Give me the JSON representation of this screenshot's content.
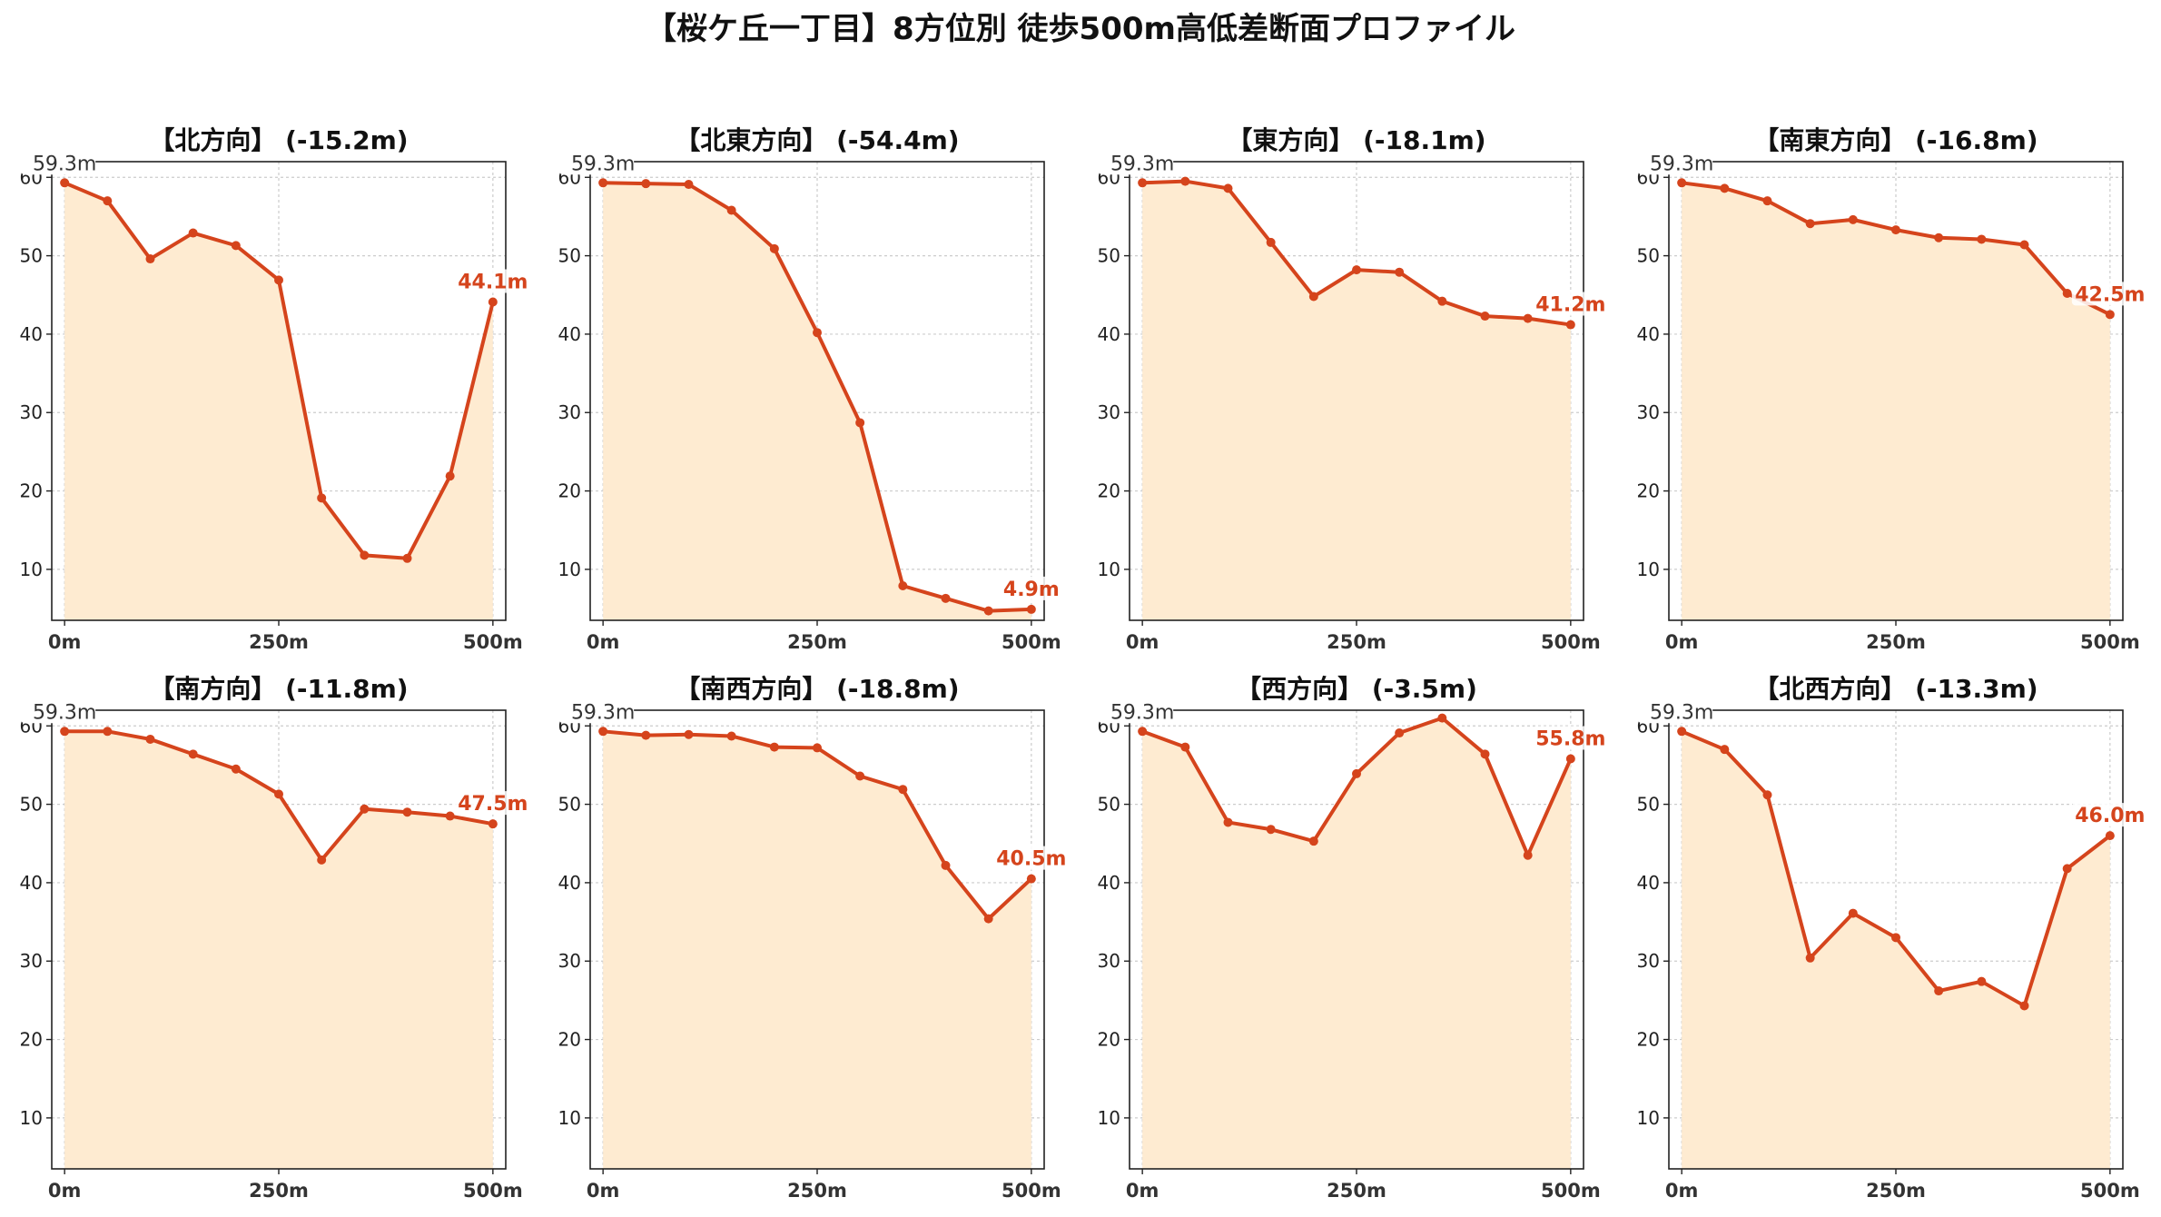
{
  "suptitle": "【桜ケ丘一丁目】8方位別 徒歩500m高低差断面プロファイル",
  "colors": {
    "line": "#d5441c",
    "fill": "#feebd1",
    "grid": "#cccccc",
    "axis": "#222222"
  },
  "chart_data": [
    {
      "type": "area",
      "title": "【北方向】 (-15.2m)",
      "x": [
        0,
        50,
        100,
        150,
        200,
        250,
        300,
        350,
        400,
        450,
        500
      ],
      "values": [
        59.3,
        57.0,
        49.6,
        52.9,
        51.3,
        46.9,
        19.1,
        11.8,
        11.4,
        21.9,
        44.1
      ],
      "start_label": "59.3m",
      "end_label": "44.1m",
      "xticks": [
        "0m",
        "250m",
        "500m"
      ],
      "yticks": [
        10,
        20,
        30,
        40,
        50,
        60
      ],
      "ylim": [
        3.5,
        62
      ]
    },
    {
      "type": "area",
      "title": "【北東方向】 (-54.4m)",
      "x": [
        0,
        50,
        100,
        150,
        200,
        250,
        300,
        350,
        400,
        450,
        500
      ],
      "values": [
        59.3,
        59.2,
        59.1,
        55.8,
        50.9,
        40.2,
        28.7,
        7.9,
        6.3,
        4.7,
        4.9
      ],
      "start_label": "59.3m",
      "end_label": "4.9m",
      "xticks": [
        "0m",
        "250m",
        "500m"
      ],
      "yticks": [
        10,
        20,
        30,
        40,
        50,
        60
      ],
      "ylim": [
        3.5,
        62
      ]
    },
    {
      "type": "area",
      "title": "【東方向】 (-18.1m)",
      "x": [
        0,
        50,
        100,
        150,
        200,
        250,
        300,
        350,
        400,
        450,
        500
      ],
      "values": [
        59.3,
        59.5,
        58.6,
        51.7,
        44.8,
        48.2,
        47.9,
        44.2,
        42.3,
        42.0,
        41.2
      ],
      "start_label": "59.3m",
      "end_label": "41.2m",
      "xticks": [
        "0m",
        "250m",
        "500m"
      ],
      "yticks": [
        10,
        20,
        30,
        40,
        50,
        60
      ],
      "ylim": [
        3.5,
        62
      ]
    },
    {
      "type": "area",
      "title": "【南東方向】 (-16.8m)",
      "x": [
        0,
        50,
        100,
        150,
        200,
        250,
        300,
        350,
        400,
        450,
        500
      ],
      "values": [
        59.3,
        58.6,
        57.0,
        54.1,
        54.6,
        53.3,
        52.3,
        52.1,
        51.4,
        45.2,
        42.5
      ],
      "start_label": "59.3m",
      "end_label": "42.5m",
      "xticks": [
        "0m",
        "250m",
        "500m"
      ],
      "yticks": [
        10,
        20,
        30,
        40,
        50,
        60
      ],
      "ylim": [
        3.5,
        62
      ]
    },
    {
      "type": "area",
      "title": "【南方向】 (-11.8m)",
      "x": [
        0,
        50,
        100,
        150,
        200,
        250,
        300,
        350,
        400,
        450,
        500
      ],
      "values": [
        59.3,
        59.3,
        58.3,
        56.4,
        54.5,
        51.3,
        42.9,
        49.4,
        49.0,
        48.5,
        47.5
      ],
      "start_label": "59.3m",
      "end_label": "47.5m",
      "xticks": [
        "0m",
        "250m",
        "500m"
      ],
      "yticks": [
        10,
        20,
        30,
        40,
        50,
        60
      ],
      "ylim": [
        3.5,
        62
      ]
    },
    {
      "type": "area",
      "title": "【南西方向】 (-18.8m)",
      "x": [
        0,
        50,
        100,
        150,
        200,
        250,
        300,
        350,
        400,
        450,
        500
      ],
      "values": [
        59.3,
        58.8,
        58.9,
        58.7,
        57.3,
        57.2,
        53.6,
        51.9,
        42.2,
        35.4,
        40.5
      ],
      "start_label": "59.3m",
      "end_label": "40.5m",
      "xticks": [
        "0m",
        "250m",
        "500m"
      ],
      "yticks": [
        10,
        20,
        30,
        40,
        50,
        60
      ],
      "ylim": [
        3.5,
        62
      ]
    },
    {
      "type": "area",
      "title": "【西方向】 (-3.5m)",
      "x": [
        0,
        50,
        100,
        150,
        200,
        250,
        300,
        350,
        400,
        450,
        500
      ],
      "values": [
        59.3,
        57.3,
        47.7,
        46.8,
        45.3,
        53.9,
        59.1,
        61.0,
        56.4,
        43.5,
        55.8
      ],
      "start_label": "59.3m",
      "end_label": "55.8m",
      "xticks": [
        "0m",
        "250m",
        "500m"
      ],
      "yticks": [
        10,
        20,
        30,
        40,
        50,
        60
      ],
      "ylim": [
        3.5,
        62
      ]
    },
    {
      "type": "area",
      "title": "【北西方向】 (-13.3m)",
      "x": [
        0,
        50,
        100,
        150,
        200,
        250,
        300,
        350,
        400,
        450,
        500
      ],
      "values": [
        59.3,
        57.0,
        51.2,
        30.4,
        36.1,
        33.0,
        26.2,
        27.4,
        24.3,
        41.8,
        46.0
      ],
      "start_label": "59.3m",
      "end_label": "46.0m",
      "xticks": [
        "0m",
        "250m",
        "500m"
      ],
      "yticks": [
        10,
        20,
        30,
        40,
        50,
        60
      ],
      "ylim": [
        3.5,
        62
      ]
    }
  ]
}
